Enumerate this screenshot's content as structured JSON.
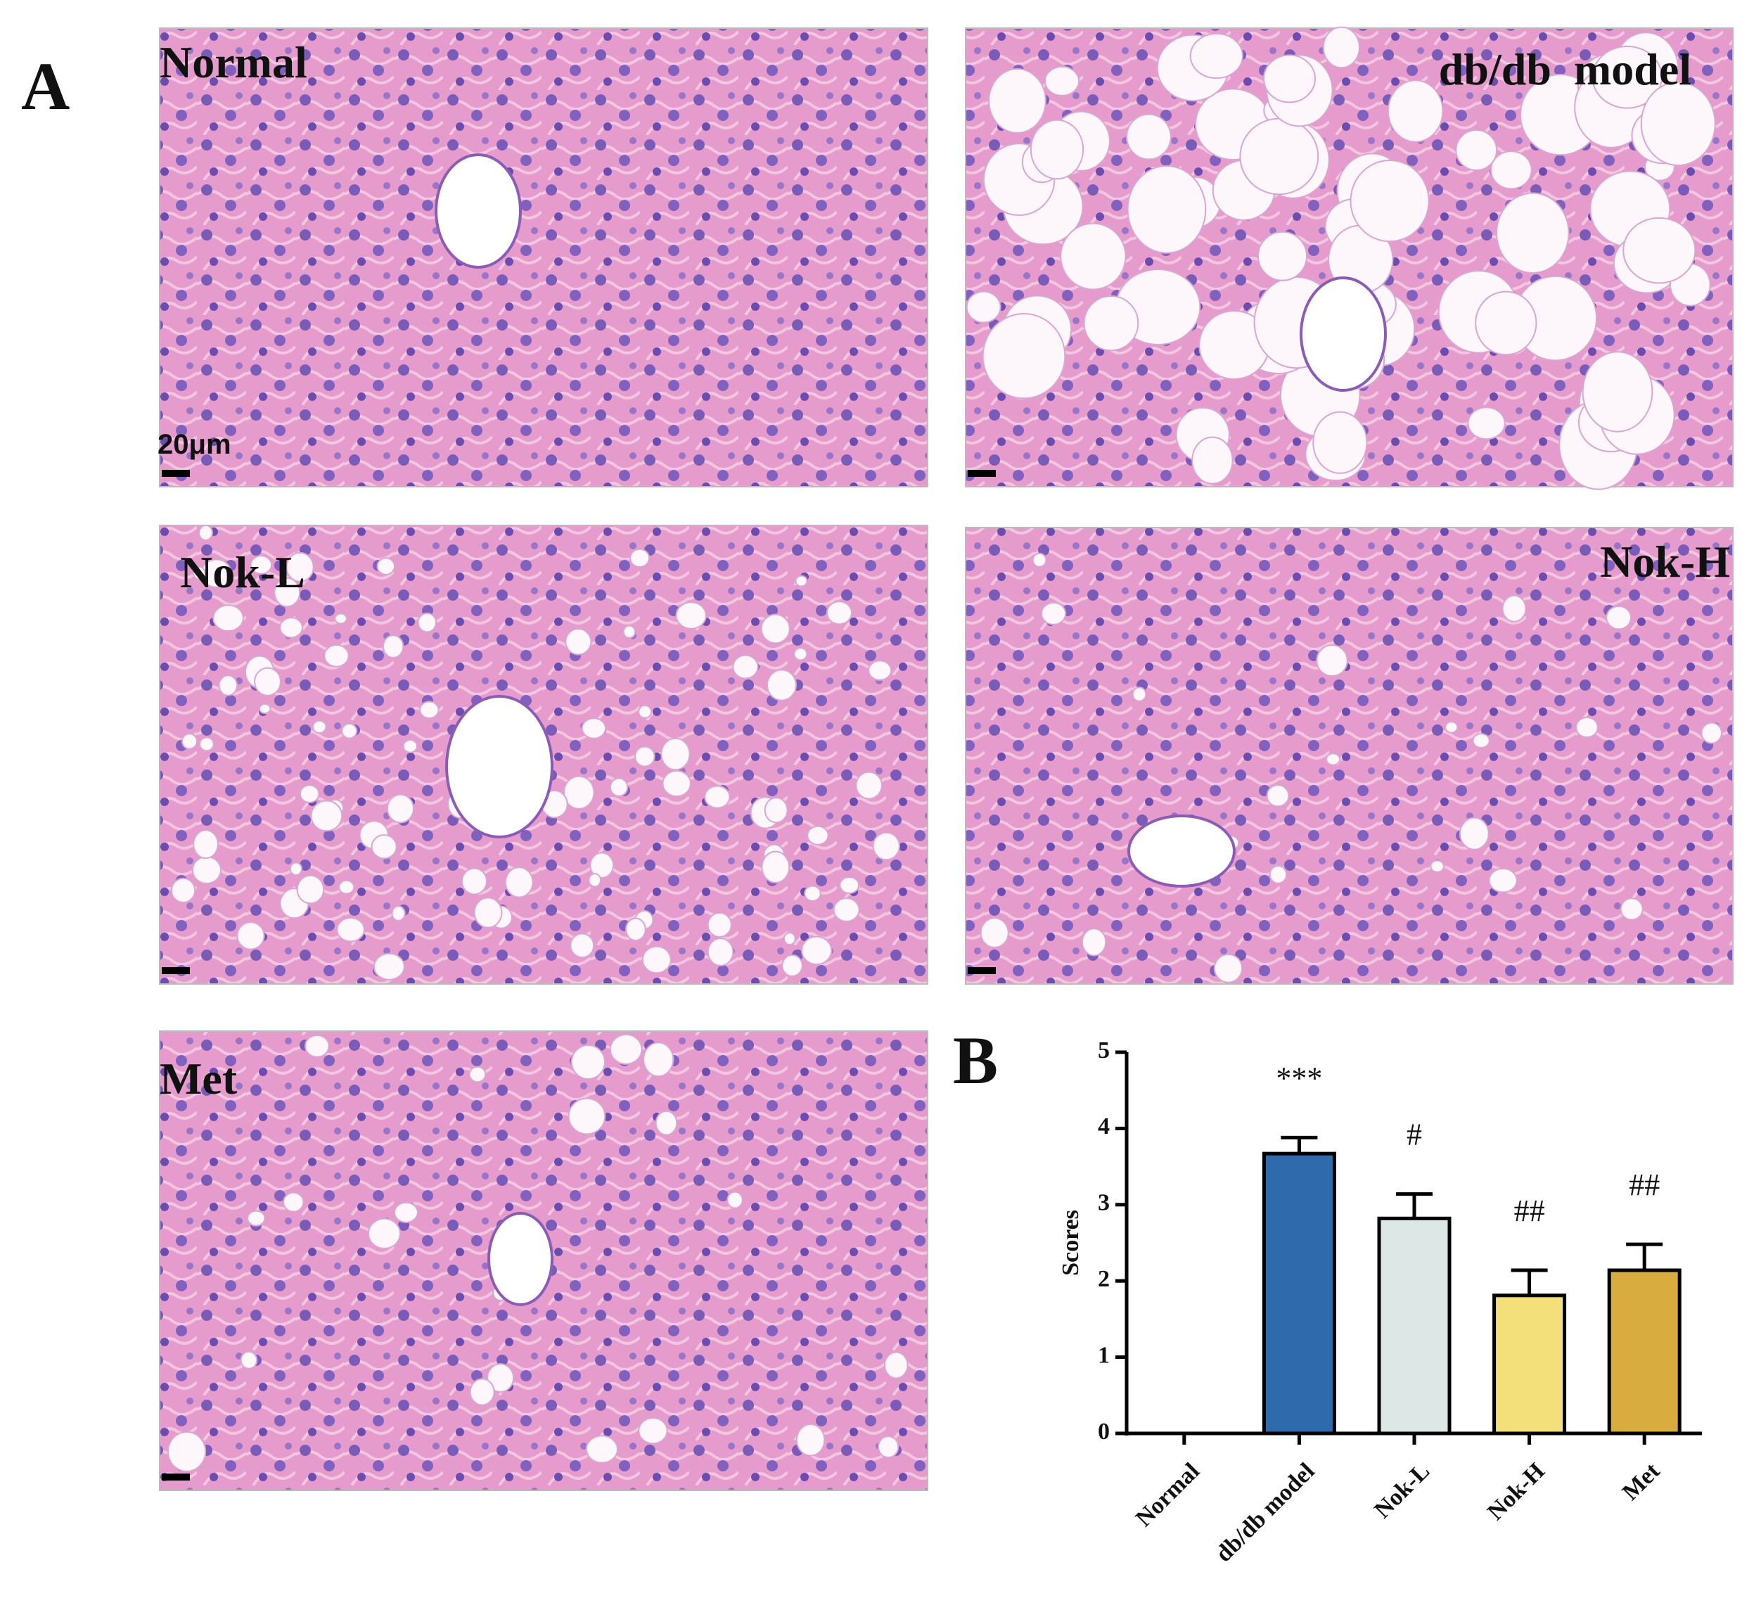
{
  "figure_labels": {
    "a": "A",
    "b": "B"
  },
  "panels": [
    {
      "label": "Normal"
    },
    {
      "label": "db/db  model"
    },
    {
      "label": "Nok-L"
    },
    {
      "label": "Nok-H"
    },
    {
      "label": "Met"
    }
  ],
  "scale_label": "20μm",
  "chart_data": {
    "type": "bar",
    "ylabel": "Scores",
    "categories": [
      "Normal",
      "db/db model",
      "Nok-L",
      "Nok-H",
      "Met"
    ],
    "values": [
      0,
      3.67,
      2.82,
      1.81,
      2.14
    ],
    "errors": [
      0,
      0.21,
      0.32,
      0.33,
      0.34
    ],
    "annotations": [
      null,
      "***",
      "#",
      "##",
      "##"
    ],
    "colors": [
      "#ffffff",
      "#2f6aad",
      "#dde8e6",
      "#f4e07a",
      "#d8ac3e"
    ],
    "ylim": [
      0,
      5
    ],
    "yticks": [
      0,
      1,
      2,
      3,
      4,
      5
    ]
  }
}
